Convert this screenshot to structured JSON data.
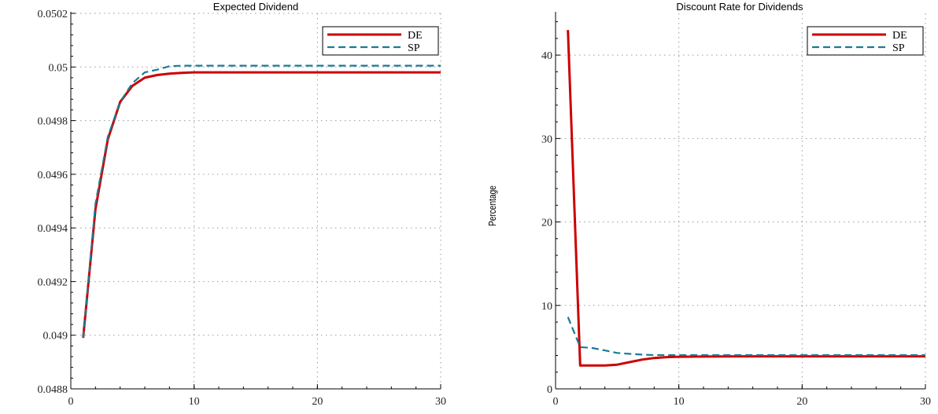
{
  "chart_data": [
    {
      "type": "line",
      "title": "Expected Dividend",
      "xlabel": "",
      "ylabel": "",
      "xlim": [
        0,
        30
      ],
      "ylim": [
        0.0488,
        0.0502
      ],
      "xticks": [
        0,
        10,
        20,
        30
      ],
      "xtick_labels": [
        "0",
        "10",
        "20",
        "30"
      ],
      "yticks": [
        0.0488,
        0.049,
        0.0492,
        0.0494,
        0.0496,
        0.0498,
        0.05,
        0.0502
      ],
      "ytick_labels": [
        "0.0488",
        "0.049",
        "0.0492",
        "0.0494",
        "0.0496",
        "0.0498",
        "0.05",
        "0.0502"
      ],
      "grid": true,
      "legend": "top-right",
      "series": [
        {
          "name": "DE",
          "color": "#cc0000",
          "style": "solid",
          "x": [
            1,
            2,
            3,
            4,
            5,
            6,
            7,
            8,
            9,
            10,
            12,
            15,
            20,
            25,
            30
          ],
          "y": [
            0.04899,
            0.04947,
            0.04973,
            0.04987,
            0.04993,
            0.04996,
            0.04997,
            0.049975,
            0.049978,
            0.04998,
            0.04998,
            0.04998,
            0.04998,
            0.04998,
            0.04998
          ]
        },
        {
          "name": "SP",
          "color": "#1a7a96",
          "style": "dashed",
          "x": [
            1,
            2,
            3,
            4,
            5,
            6,
            7,
            8,
            9,
            10,
            12,
            15,
            20,
            25,
            30
          ],
          "y": [
            0.04899,
            0.04949,
            0.04974,
            0.04987,
            0.04994,
            0.04998,
            0.04999,
            0.050003,
            0.050005,
            0.050005,
            0.050005,
            0.050005,
            0.050005,
            0.050005,
            0.050005
          ]
        }
      ]
    },
    {
      "type": "line",
      "title": "Discount Rate for Dividends",
      "xlabel": "",
      "ylabel": "Percentage",
      "xlim": [
        0,
        30
      ],
      "ylim": [
        0,
        45
      ],
      "xticks": [
        0,
        10,
        20,
        30
      ],
      "xtick_labels": [
        "0",
        "10",
        "20",
        "30"
      ],
      "yticks": [
        0,
        10,
        20,
        30,
        40
      ],
      "ytick_labels": [
        "0",
        "10",
        "20",
        "30",
        "40"
      ],
      "grid": true,
      "legend": "top-right",
      "series": [
        {
          "name": "DE",
          "color": "#cc0000",
          "style": "solid",
          "x": [
            1,
            2,
            3,
            4,
            5,
            6,
            7,
            8,
            9,
            10,
            15,
            20,
            25,
            30
          ],
          "y": [
            43.0,
            2.8,
            2.8,
            2.8,
            2.9,
            3.2,
            3.5,
            3.7,
            3.8,
            3.85,
            3.9,
            3.9,
            3.9,
            3.9
          ]
        },
        {
          "name": "SP",
          "color": "#1a7a96",
          "style": "dashed",
          "x": [
            1,
            2,
            3,
            4,
            5,
            6,
            7,
            8,
            9,
            10,
            15,
            20,
            25,
            30
          ],
          "y": [
            8.6,
            5.0,
            4.9,
            4.6,
            4.3,
            4.2,
            4.1,
            4.05,
            4.05,
            4.05,
            4.05,
            4.05,
            4.05,
            4.05
          ]
        }
      ]
    }
  ]
}
